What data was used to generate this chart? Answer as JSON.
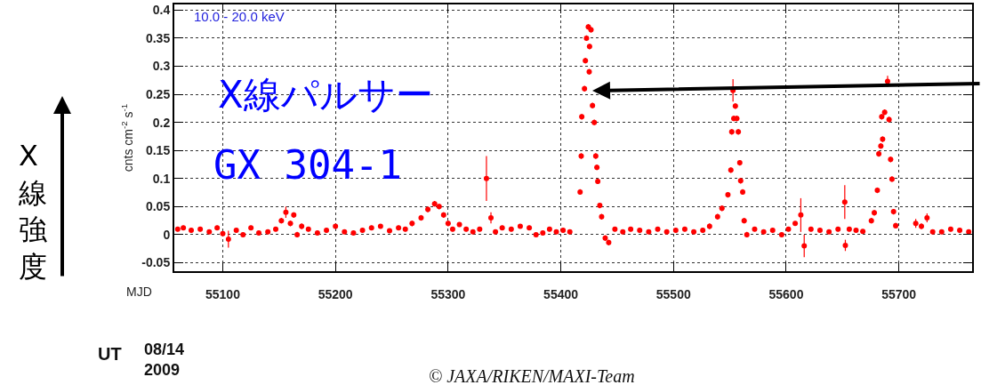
{
  "chart_data": {
    "type": "scatter",
    "xlabel": "MJD",
    "ylabel": "cnts cm$^{-2}$ s$^{-1}$",
    "annotations": [
      "10.0 - 20.0 keV",
      "X線パルサー",
      "GX 304-1",
      "X線強度",
      "UT",
      "08/14\n2009",
      "© JAXA/RIKEN/MAXI-Team"
    ],
    "xlim": [
      55057,
      55765
    ],
    "xticks": [
      55100,
      55200,
      55300,
      55400,
      55500,
      55600,
      55700
    ],
    "ylim": [
      -0.065,
      0.41
    ],
    "yticks": [
      -0.05,
      0,
      0.05,
      0.1,
      0.15,
      0.2,
      0.25,
      0.3,
      0.35,
      0.4
    ],
    "grid": true,
    "marker": "circle",
    "series": [
      {
        "color": "#ff0000",
        "x": [
          55060,
          55065,
          55072,
          55080,
          55088,
          55095,
          55100,
          55105,
          55112,
          55118,
          55125,
          55132,
          55140,
          55147,
          55152,
          55156,
          55160,
          55163,
          55166,
          55170,
          55176,
          55184,
          55192,
          55200,
          55208,
          55216,
          55224,
          55232,
          55240,
          55248,
          55256,
          55262,
          55268,
          55276,
          55282,
          55288,
          55292,
          55296,
          55300,
          55304,
          55310,
          55316,
          55322,
          55328,
          55334,
          55338,
          55342,
          55348,
          55356,
          55364,
          55372,
          55378,
          55384,
          55390,
          55396,
          55402,
          55408,
          55417.1,
          55418.1,
          55418.6,
          55421,
          55421.8,
          55422.8,
          55424.4,
          55425.2,
          55425.5,
          55426.8,
          55428.1,
          55429.7,
          55431,
          55432,
          55432.8,
          55434.6,
          55436.2,
          55439.4,
          55442.5,
          55448,
          55455,
          55462,
          55470,
          55478,
          55486,
          55494,
          55502,
          55510,
          55518,
          55526,
          55532,
          55539.1,
          55543,
          55548.3,
          55550.9,
          55551.7,
          55552.8,
          55553.5,
          55554.9,
          55556.2,
          55557.5,
          55558.8,
          55559.6,
          55561.4,
          55562.7,
          55565.1,
          55572,
          55580,
          55588,
          55596,
          55602,
          55608,
          55613,
          55616,
          55622,
          55630,
          55638,
          55646,
          55652,
          55652.5,
          55656,
          55662,
          55668,
          55675.6,
          55678.2,
          55680.9,
          55682.2,
          55684,
          55684.8,
          55685.6,
          55687.4,
          55690,
          55691.3,
          55692.7,
          55693.9,
          55695.3,
          55697.2,
          55715,
          55720,
          55725,
          55730,
          55738,
          55746,
          55754,
          55762
        ],
        "values": [
          0.01,
          0.012,
          0.008,
          0.01,
          0.005,
          0.012,
          0.002,
          -0.008,
          0.008,
          0,
          0.012,
          0.003,
          0.005,
          0.01,
          0.025,
          0.04,
          0.02,
          0.035,
          0,
          0.015,
          0.01,
          0.003,
          0.008,
          0.015,
          0.005,
          0.003,
          0.008,
          0.012,
          0.015,
          0.007,
          0.012,
          0.01,
          0.02,
          0.03,
          0.045,
          0.055,
          0.05,
          0.035,
          0.02,
          0.01,
          0.018,
          0.01,
          0.005,
          0.01,
          0.1,
          0.03,
          0.005,
          0.012,
          0.01,
          0.015,
          0.012,
          0,
          0.003,
          0.01,
          0.005,
          0.008,
          0.005,
          0.076,
          0.14,
          0.21,
          0.26,
          0.31,
          0.35,
          0.37,
          0.29,
          0.335,
          0.365,
          0.23,
          0.2,
          0.14,
          0.12,
          0.095,
          0.052,
          0.032,
          -0.006,
          -0.014,
          0.01,
          0.005,
          0.01,
          0.008,
          0.005,
          0.01,
          0.005,
          0.008,
          0.01,
          0.005,
          0.008,
          0.015,
          0.032,
          0.047,
          0.071,
          0.115,
          0.183,
          0.257,
          0.207,
          0.229,
          0.207,
          0.183,
          0.128,
          0.096,
          0.076,
          0.025,
          0,
          0.01,
          0.005,
          0.008,
          0,
          0.01,
          0.02,
          0.035,
          -0.02,
          0.01,
          0.008,
          0.005,
          0.01,
          0.058,
          -0.019,
          0.01,
          0.008,
          0.006,
          0.025,
          0.039,
          0.079,
          0.144,
          0.158,
          0.21,
          0.17,
          0.218,
          0.273,
          0.205,
          0.134,
          0.099,
          0.041,
          0.016,
          0.02,
          0.015,
          0.03,
          0.005,
          0.005,
          0.01,
          0.008,
          0.005
        ],
        "errors": [
          0.004,
          0.004,
          0.004,
          0.004,
          0.004,
          0.004,
          0.004,
          0.015,
          0.004,
          0.004,
          0.004,
          0.004,
          0.004,
          0.004,
          0.005,
          0.01,
          0.005,
          0.005,
          0.005,
          0.005,
          0.004,
          0.004,
          0.004,
          0.004,
          0.004,
          0.004,
          0.004,
          0.004,
          0.004,
          0.004,
          0.004,
          0.004,
          0.005,
          0.005,
          0.005,
          0.005,
          0.005,
          0.005,
          0.005,
          0.004,
          0.004,
          0.004,
          0.004,
          0.004,
          0.04,
          0.01,
          0.004,
          0.004,
          0.004,
          0.004,
          0.004,
          0.004,
          0.004,
          0.004,
          0.004,
          0.004,
          0.004,
          0.005,
          0.005,
          0.005,
          0.005,
          0.005,
          0.005,
          0.005,
          0.005,
          0.005,
          0.005,
          0.005,
          0.005,
          0.005,
          0.005,
          0.005,
          0.005,
          0.005,
          0.005,
          0.005,
          0.004,
          0.004,
          0.004,
          0.004,
          0.004,
          0.004,
          0.004,
          0.004,
          0.004,
          0.004,
          0.004,
          0.005,
          0.005,
          0.005,
          0.005,
          0.005,
          0.005,
          0.02,
          0.005,
          0.005,
          0.005,
          0.005,
          0.005,
          0.005,
          0.005,
          0.005,
          0.005,
          0.004,
          0.004,
          0.004,
          0.004,
          0.004,
          0.004,
          0.03,
          0.02,
          0.004,
          0.004,
          0.004,
          0.004,
          0.03,
          0.01,
          0.004,
          0.004,
          0.004,
          0.005,
          0.005,
          0.005,
          0.005,
          0.005,
          0.005,
          0.005,
          0.005,
          0.01,
          0.005,
          0.005,
          0.005,
          0.005,
          0.005,
          0.008,
          0.005,
          0.008,
          0.004,
          0.004,
          0.004,
          0.004,
          0.004
        ]
      }
    ]
  }
}
